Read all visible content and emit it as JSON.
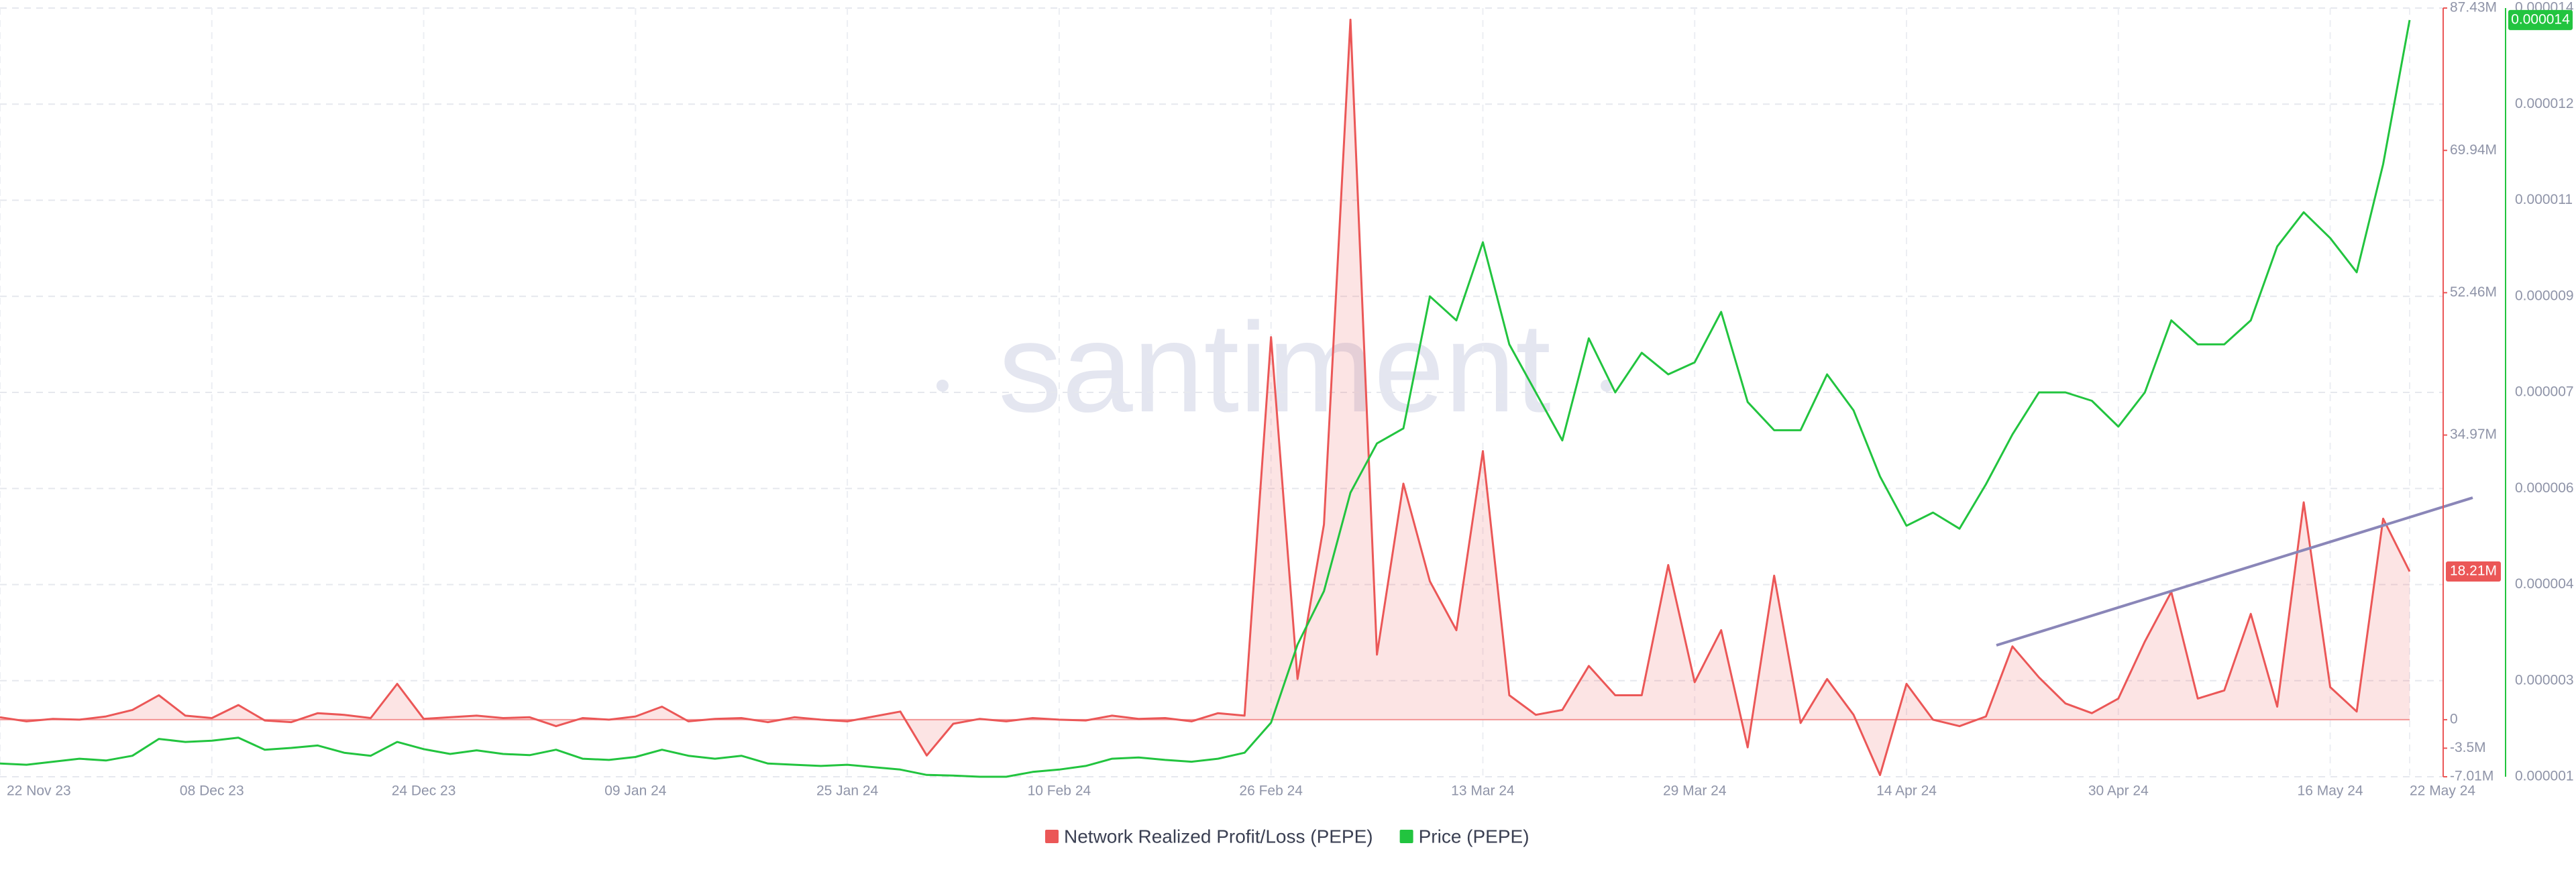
{
  "chart_data": {
    "type": "line",
    "watermark": "santiment",
    "categories": [
      "22 Nov 23",
      null,
      null,
      null,
      null,
      null,
      null,
      null,
      "08 Dec 23",
      null,
      null,
      null,
      null,
      null,
      null,
      null,
      "24 Dec 23",
      null,
      null,
      null,
      null,
      null,
      null,
      null,
      "09 Jan 24",
      null,
      null,
      null,
      null,
      null,
      null,
      null,
      "25 Jan 24",
      null,
      null,
      null,
      null,
      null,
      null,
      null,
      "10 Feb 24",
      null,
      null,
      null,
      null,
      null,
      null,
      null,
      "26 Feb 24",
      null,
      null,
      null,
      null,
      null,
      null,
      null,
      "13 Mar 24",
      null,
      null,
      null,
      null,
      null,
      null,
      null,
      "29 Mar 24",
      null,
      null,
      null,
      null,
      null,
      null,
      null,
      "14 Apr 24",
      null,
      null,
      null,
      null,
      null,
      null,
      null,
      "30 Apr 24",
      null,
      null,
      null,
      null,
      null,
      null,
      null,
      "16 May 24",
      null,
      null,
      "22 May 24"
    ],
    "series": [
      {
        "name": "Network Realized Profit/Loss (PEPE)",
        "color": "#eb5757",
        "area": true,
        "last_label": "18.21M",
        "values": [
          300000,
          -200000,
          100000,
          0,
          400000,
          1200000,
          3000000,
          500000,
          200000,
          1800000,
          -100000,
          -300000,
          800000,
          600000,
          200000,
          4400000,
          100000,
          300000,
          500000,
          200000,
          300000,
          -800000,
          200000,
          0,
          400000,
          1600000,
          -200000,
          100000,
          200000,
          -300000,
          300000,
          0,
          -200000,
          400000,
          1000000,
          -4400000,
          -500000,
          100000,
          -200000,
          200000,
          0,
          -100000,
          500000,
          100000,
          200000,
          -200000,
          800000,
          500000,
          47000000,
          5000000,
          24000000,
          86000000,
          8000000,
          29000000,
          17000000,
          11000000,
          33000000,
          3000000,
          600000,
          1200000,
          6600000,
          3000000,
          3000000,
          19000000,
          4600000,
          11000000,
          -3400000,
          17700000,
          -400000,
          5000000,
          600000,
          -6800000,
          4400000,
          0,
          -800000,
          400000,
          9000000,
          5200000,
          2000000,
          800000,
          2600000,
          9600000,
          15700000,
          2600000,
          3600000,
          13000000,
          1600000,
          26700000,
          4000000,
          1000000,
          24700000,
          18210000
        ]
      },
      {
        "name": "Price (PEPE)",
        "color": "#22c43f",
        "axis": "y2",
        "last_label": "0.000014",
        "values": [
          1.22e-06,
          1.2e-06,
          1.25e-06,
          1.3e-06,
          1.27e-06,
          1.35e-06,
          1.63e-06,
          1.58e-06,
          1.6e-06,
          1.65e-06,
          1.45e-06,
          1.48e-06,
          1.52e-06,
          1.4e-06,
          1.35e-06,
          1.58e-06,
          1.46e-06,
          1.38e-06,
          1.44e-06,
          1.38e-06,
          1.36e-06,
          1.45e-06,
          1.3e-06,
          1.28e-06,
          1.33e-06,
          1.45e-06,
          1.35e-06,
          1.3e-06,
          1.35e-06,
          1.22e-06,
          1.2e-06,
          1.18e-06,
          1.2e-06,
          1.16e-06,
          1.12e-06,
          1.03e-06,
          1.02e-06,
          1e-06,
          1e-06,
          1.08e-06,
          1.12e-06,
          1.18e-06,
          1.3e-06,
          1.32e-06,
          1.28e-06,
          1.25e-06,
          1.3e-06,
          1.4e-06,
          1.9e-06,
          3.2e-06,
          4.09e-06,
          5.73e-06,
          6.55e-06,
          6.8e-06,
          9e-06,
          8.6e-06,
          9.9e-06,
          8.2e-06,
          7.4e-06,
          6.6e-06,
          8.3e-06,
          7.4e-06,
          8.06e-06,
          7.7e-06,
          7.9e-06,
          8.74e-06,
          7.24e-06,
          6.77e-06,
          6.77e-06,
          7.7e-06,
          7.1e-06,
          6e-06,
          5.18e-06,
          5.4e-06,
          5.13e-06,
          5.87e-06,
          6.7e-06,
          7.4e-06,
          7.4e-06,
          7.26e-06,
          6.83e-06,
          7.4e-06,
          8.6e-06,
          8.2e-06,
          8.2e-06,
          8.6e-06,
          9.83e-06,
          1.04e-05,
          9.97e-06,
          9.4e-06,
          1.12e-05,
          1.36e-05
        ]
      }
    ],
    "ylim": [
      -7010000,
      87430000
    ],
    "yticks": [
      {
        "value": 87430000,
        "label": "87.43M"
      },
      {
        "value": 69940000,
        "label": "69.94M"
      },
      {
        "value": 52460000,
        "label": "52.46M"
      },
      {
        "value": 34970000,
        "label": "34.97M"
      },
      0,
      {
        "value": -3500000,
        "label": "-3.5M"
      },
      {
        "value": -7010000,
        "label": "-7.01M"
      }
    ],
    "y2lim": [
      1e-06,
      1.38e-05
    ],
    "y2ticks": [
      {
        "value": 1.38e-05,
        "label": "0.000014"
      },
      {
        "value": 1.22e-05,
        "label": "0.000012"
      },
      {
        "value": 1.06e-05,
        "label": "0.000011"
      },
      9e-06,
      {
        "value": 7.4e-06,
        "label": "0.000007"
      },
      {
        "value": 5.8e-06,
        "label": "0.000006"
      },
      {
        "value": 4.2e-06,
        "label": "0.000004"
      },
      {
        "value": 2.6e-06,
        "label": "0.000003"
      },
      1e-06
    ],
    "grid": true,
    "legend": "bottom"
  }
}
